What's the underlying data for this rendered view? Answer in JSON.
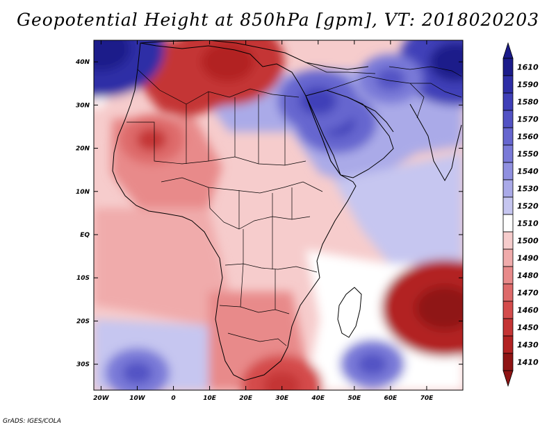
{
  "title": "Geopotential Height at 850hPa [gpm], VT: 2018020203",
  "credit": "GrADS: IGES/COLA",
  "chart_data": {
    "type": "heatmap",
    "variable": "Geopotential Height at 850hPa",
    "units": "gpm",
    "valid_time": "2018020203",
    "lon_range": [
      -22,
      80
    ],
    "lat_range": [
      -36,
      45
    ],
    "x_ticks": [
      "20W",
      "10W",
      "0",
      "10E",
      "20E",
      "30E",
      "40E",
      "50E",
      "60E",
      "70E"
    ],
    "x_tick_values": [
      -20,
      -10,
      0,
      10,
      20,
      30,
      40,
      50,
      60,
      70
    ],
    "y_ticks": [
      "40N",
      "30N",
      "20N",
      "10N",
      "EQ",
      "10S",
      "20S",
      "30S"
    ],
    "y_tick_values": [
      40,
      30,
      20,
      10,
      0,
      -10,
      -20,
      -30
    ],
    "colorbar": {
      "labels": [
        "1610",
        "1590",
        "1580",
        "1570",
        "1560",
        "1550",
        "1540",
        "1530",
        "1520",
        "1510",
        "1500",
        "1490",
        "1480",
        "1470",
        "1460",
        "1450",
        "1430",
        "1410"
      ],
      "colors": [
        "#1b1b8a",
        "#2e2ea6",
        "#3f3fb8",
        "#5252c4",
        "#6666cf",
        "#7a7ad8",
        "#9090e0",
        "#aaaae8",
        "#c6c6f0",
        "#ffffff",
        "#f6cccc",
        "#f0abab",
        "#e88a8a",
        "#de6a6a",
        "#d44c4c",
        "#c43434",
        "#b22222",
        "#8f1414"
      ],
      "top_arrow_color": "#1b1b8a",
      "bottom_arrow_color": "#8f1414"
    },
    "features": [
      {
        "type": "low",
        "lon": -20,
        "lat": 43,
        "level": 1590
      },
      {
        "type": "low",
        "lon": 78,
        "lat": 40,
        "level": 1580
      },
      {
        "type": "low",
        "lon": 45,
        "lat": 26,
        "level": 1560
      },
      {
        "type": "low",
        "lon": 40,
        "lat": 31,
        "level": 1560
      },
      {
        "type": "low",
        "lon": 60,
        "lat": 36,
        "level": 1550
      },
      {
        "type": "low",
        "lon": -10,
        "lat": -32,
        "level": 1550
      },
      {
        "type": "low",
        "lon": 55,
        "lat": -30,
        "level": 1550
      },
      {
        "type": "high",
        "lon": 15,
        "lat": 40,
        "level": 1440
      },
      {
        "type": "high",
        "lon": -6,
        "lat": 22,
        "level": 1470
      },
      {
        "type": "high",
        "lon": 30,
        "lat": -35,
        "level": 1460
      },
      {
        "type": "high",
        "lon": 75,
        "lat": -17,
        "level": 1430
      }
    ]
  }
}
